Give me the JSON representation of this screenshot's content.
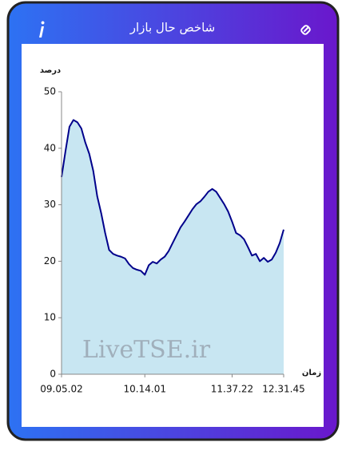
{
  "chart_data": {
    "type": "area",
    "title": "شاخص حال بازار",
    "ylabel": "درصد",
    "xlabel": "زمان",
    "annotation": "LiveTSE.ir",
    "x": [
      0,
      1,
      2,
      3,
      4,
      5,
      6,
      7,
      8,
      9,
      10,
      11,
      12,
      13,
      14,
      15,
      16,
      17,
      18,
      19,
      20,
      21,
      22,
      23,
      24,
      25,
      26,
      27,
      28,
      29,
      30,
      31,
      32,
      33,
      34,
      35,
      36,
      37,
      38,
      39,
      40,
      41,
      42,
      43,
      44,
      45,
      46,
      47,
      48,
      49,
      50,
      51,
      52,
      53,
      54,
      55,
      56
    ],
    "values": [
      34.9,
      39.5,
      43.8,
      45,
      44.6,
      43.5,
      41,
      39,
      36,
      31.5,
      28.5,
      25,
      22,
      21.3,
      21,
      20.8,
      20.5,
      19.5,
      18.8,
      18.5,
      18.3,
      17.6,
      19.3,
      19.9,
      19.6,
      20.3,
      20.8,
      21.8,
      23.2,
      24.6,
      26,
      27,
      28.1,
      29.2,
      30.1,
      30.6,
      31.4,
      32.3,
      32.8,
      32.3,
      31.2,
      30.1,
      28.8,
      27,
      25,
      24.6,
      23.9,
      22.5,
      21,
      21.3,
      20,
      20.6,
      19.9,
      20.3,
      21.5,
      23.2,
      25.6
    ],
    "color": "#00008b",
    "fill": "#c8e6f2",
    "xlim": [
      0,
      56
    ],
    "xticks": [
      {
        "value": 0,
        "label": "09.05.02"
      },
      {
        "value": 21,
        "label": "10.14.01"
      },
      {
        "value": 43,
        "label": "11.37.22"
      },
      {
        "value": 56,
        "label": "12.31.45"
      }
    ],
    "ylim": [
      0,
      50
    ],
    "yticks": [
      0,
      10,
      20,
      30,
      40,
      50
    ],
    "grid": false
  }
}
